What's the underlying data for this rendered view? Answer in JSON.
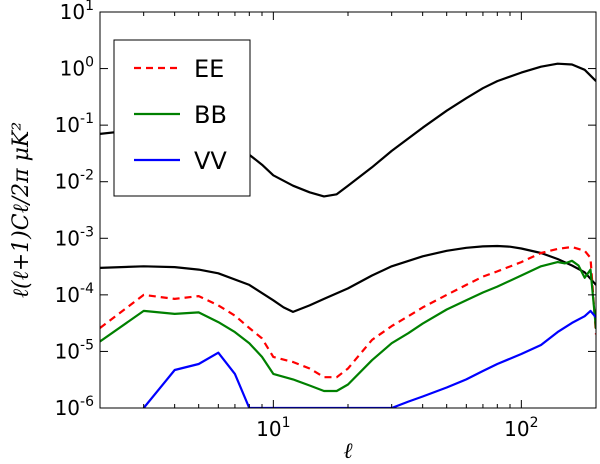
{
  "chart_data": {
    "type": "line",
    "title": "",
    "xlabel": "ℓ",
    "ylabel": "ℓ(ℓ+1)Cℓ/2π μK²",
    "xscale": "log",
    "yscale": "log",
    "xlim": [
      2,
      200
    ],
    "ylim": [
      1e-06,
      10
    ],
    "grid": false,
    "legend_position": "top-left",
    "x_ticks": [
      {
        "value": 10,
        "base": "10",
        "exp": "1"
      },
      {
        "value": 100,
        "base": "10",
        "exp": "2"
      }
    ],
    "y_ticks": [
      {
        "value": 1e-06,
        "base": "10",
        "exp": "-6"
      },
      {
        "value": 1e-05,
        "base": "10",
        "exp": "-5"
      },
      {
        "value": 0.0001,
        "base": "10",
        "exp": "-4"
      },
      {
        "value": 0.001,
        "base": "10",
        "exp": "-3"
      },
      {
        "value": 0.01,
        "base": "10",
        "exp": "-2"
      },
      {
        "value": 0.1,
        "base": "10",
        "exp": "-1"
      },
      {
        "value": 1,
        "base": "10",
        "exp": "0"
      },
      {
        "value": 10,
        "base": "10",
        "exp": "1"
      }
    ],
    "series": [
      {
        "color": "#000000",
        "dash": "solid",
        "x": [
          2,
          3,
          4,
          5,
          6,
          7,
          8,
          9,
          10,
          12,
          14,
          16,
          18,
          20,
          25,
          30,
          40,
          50,
          60,
          70,
          80,
          100,
          120,
          140,
          160,
          180,
          200
        ],
        "y": [
          0.07,
          0.085,
          0.085,
          0.075,
          0.06,
          0.043,
          0.03,
          0.02,
          0.013,
          0.0085,
          0.0065,
          0.0055,
          0.006,
          0.0085,
          0.018,
          0.035,
          0.09,
          0.18,
          0.3,
          0.45,
          0.6,
          0.85,
          1.08,
          1.22,
          1.18,
          0.95,
          0.6
        ]
      },
      {
        "color": "#000000",
        "dash": "solid",
        "x": [
          2,
          3,
          4,
          5,
          6,
          8,
          10,
          11,
          12,
          14,
          16,
          20,
          25,
          30,
          40,
          50,
          60,
          70,
          80,
          90,
          100,
          120,
          140,
          160,
          180,
          200
        ],
        "y": [
          0.0003,
          0.00032,
          0.00031,
          0.00028,
          0.00024,
          0.00015,
          8e-05,
          6e-05,
          5e-05,
          6.5e-05,
          8.5e-05,
          0.00013,
          0.00022,
          0.00032,
          0.00048,
          0.0006,
          0.00068,
          0.00072,
          0.00073,
          0.00071,
          0.00066,
          0.00055,
          0.00043,
          0.00033,
          0.00025,
          0.00015
        ]
      },
      {
        "name": "EE",
        "color": "#ff0000",
        "dash": "dashed",
        "x": [
          2,
          3,
          4,
          5,
          6,
          7,
          8,
          9,
          10,
          12,
          14,
          16,
          18,
          20,
          25,
          30,
          35,
          40,
          50,
          60,
          70,
          80,
          100,
          120,
          140,
          160,
          180,
          190,
          200
        ],
        "y": [
          2.6e-05,
          0.0001,
          8.5e-05,
          9.5e-05,
          6.5e-05,
          4.3e-05,
          2.6e-05,
          1.7e-05,
          8e-06,
          6.5e-06,
          5e-06,
          3.5e-06,
          3.5e-06,
          5e-06,
          1.6e-05,
          2.8e-05,
          4.2e-05,
          6e-05,
          0.0001,
          0.00015,
          0.00021,
          0.00026,
          0.00038,
          0.00055,
          0.00065,
          0.0007,
          0.0006,
          0.00045,
          2e-05
        ]
      },
      {
        "name": "BB",
        "color": "#008000",
        "dash": "solid",
        "x": [
          2,
          3,
          4,
          5,
          6,
          7,
          8,
          9,
          10,
          12,
          14,
          16,
          18,
          20,
          25,
          30,
          35,
          40,
          50,
          60,
          70,
          80,
          100,
          120,
          140,
          150,
          160,
          170,
          180,
          190,
          200
        ],
        "y": [
          1.5e-05,
          5.2e-05,
          4.6e-05,
          4.9e-05,
          3.3e-05,
          2.2e-05,
          1.4e-05,
          8e-06,
          4e-06,
          3.2e-06,
          2.5e-06,
          2e-06,
          2e-06,
          2.6e-06,
          7e-06,
          1.4e-05,
          2.1e-05,
          3.1e-05,
          5.5e-05,
          8e-05,
          0.00011,
          0.00014,
          0.00022,
          0.00032,
          0.00038,
          0.00036,
          0.0004,
          0.00033,
          0.0002,
          0.00028,
          2.5e-05
        ]
      },
      {
        "name": "VV",
        "color": "#0000ff",
        "dash": "solid",
        "x": [
          3,
          4,
          5,
          6,
          7,
          8,
          30,
          35,
          40,
          50,
          60,
          70,
          80,
          100,
          120,
          140,
          160,
          180,
          190,
          200
        ],
        "y": [
          1e-06,
          4.7e-06,
          6e-06,
          9.5e-06,
          4e-06,
          1e-06,
          1e-06,
          1.3e-06,
          1.6e-06,
          2.3e-06,
          3.2e-06,
          4.5e-06,
          6e-06,
          9e-06,
          1.3e-05,
          2.2e-05,
          3.2e-05,
          4.2e-05,
          5.2e-05,
          4e-05
        ]
      }
    ]
  }
}
